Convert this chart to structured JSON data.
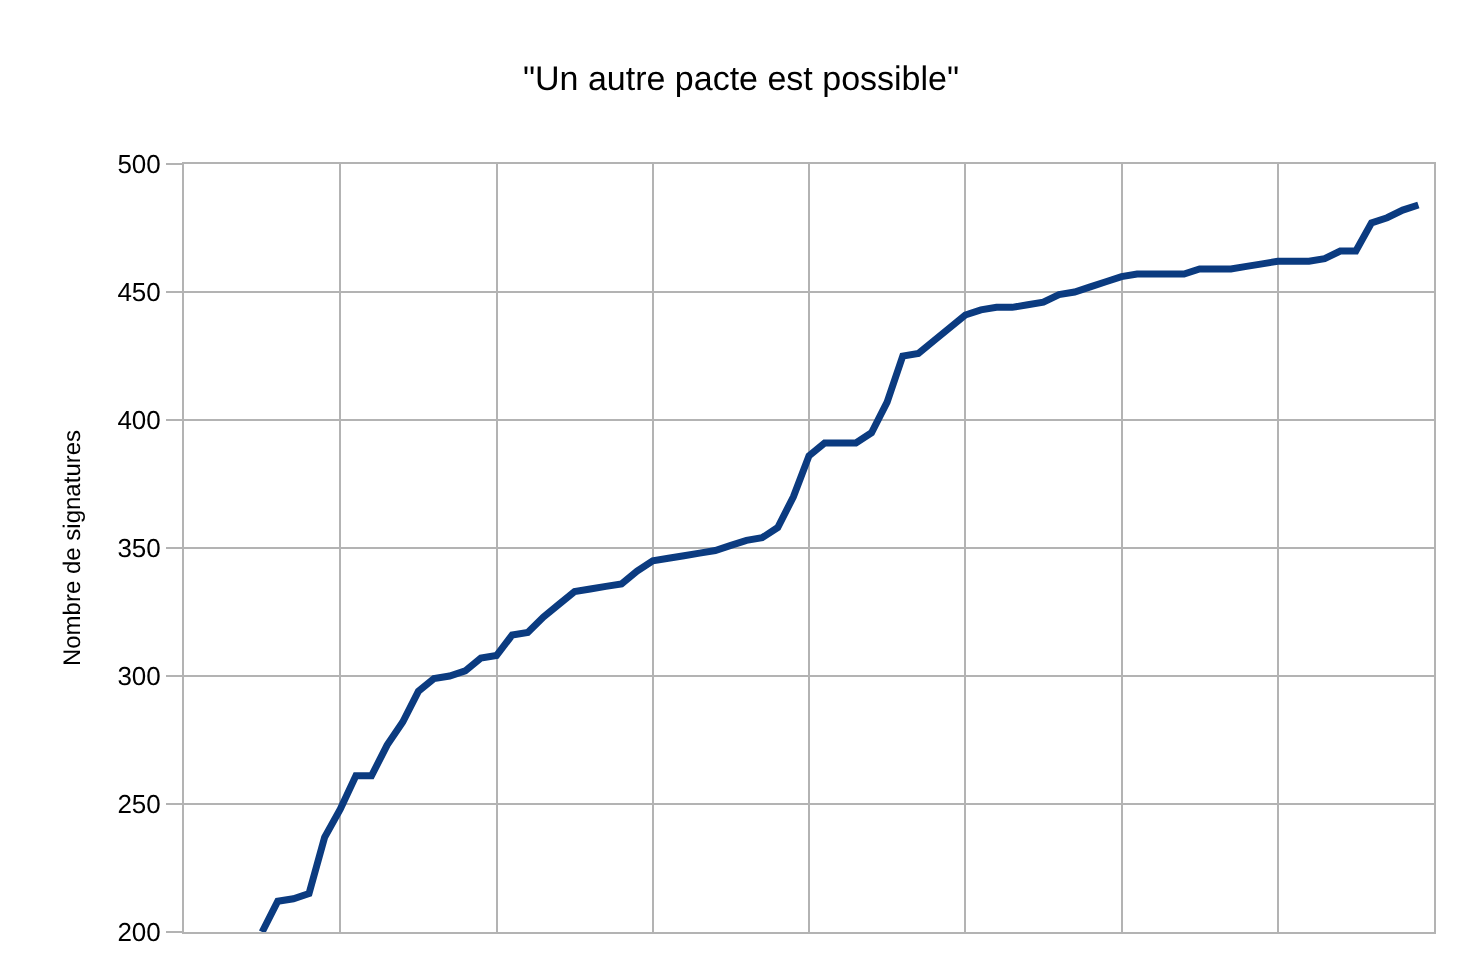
{
  "chart_data": {
    "type": "line",
    "title": "\"Un autre pacte est possible\"",
    "ylabel": "Nombre de signatures",
    "categories": [
      null,
      null,
      null,
      null,
      null,
      null,
      null,
      null,
      null,
      null,
      null,
      null,
      null,
      null,
      null,
      null,
      null,
      null,
      null,
      null,
      null,
      null,
      null,
      null,
      null,
      null,
      null,
      null,
      null,
      null,
      null,
      null,
      null,
      null,
      null,
      null,
      null,
      null,
      null,
      null,
      null,
      null,
      null,
      null,
      null,
      null,
      null,
      null,
      null,
      null,
      null,
      null,
      null,
      null,
      null,
      null,
      null,
      null,
      null,
      null,
      null,
      null,
      null,
      null,
      null,
      null,
      null,
      null,
      null,
      null,
      null,
      null,
      null,
      null,
      null,
      null,
      null,
      null,
      null,
      null,
      null
    ],
    "series": [
      {
        "color": "#0b3b80",
        "values": [
          null,
          null,
          null,
          null,
          null,
          200,
          212,
          213,
          215,
          237,
          248,
          261,
          261,
          273,
          282,
          294,
          299,
          300,
          302,
          307,
          308,
          316,
          317,
          323,
          328,
          333,
          334,
          335,
          336,
          341,
          345,
          346,
          347,
          348,
          349,
          351,
          353,
          354,
          358,
          370,
          386,
          391,
          391,
          391,
          395,
          407,
          425,
          426,
          431,
          436,
          441,
          443,
          444,
          444,
          445,
          446,
          449,
          450,
          452,
          454,
          456,
          457,
          457,
          457,
          457,
          459,
          459,
          459,
          460,
          461,
          462,
          462,
          462,
          463,
          466,
          466,
          477,
          479,
          482,
          484,
          null
        ]
      }
    ],
    "ylim": [
      200,
      500
    ],
    "yticks": [
      200,
      250,
      300,
      350,
      400,
      450,
      500
    ],
    "grid": true,
    "tick_labels": "y",
    "marker": "none",
    "line_style": "solid"
  }
}
